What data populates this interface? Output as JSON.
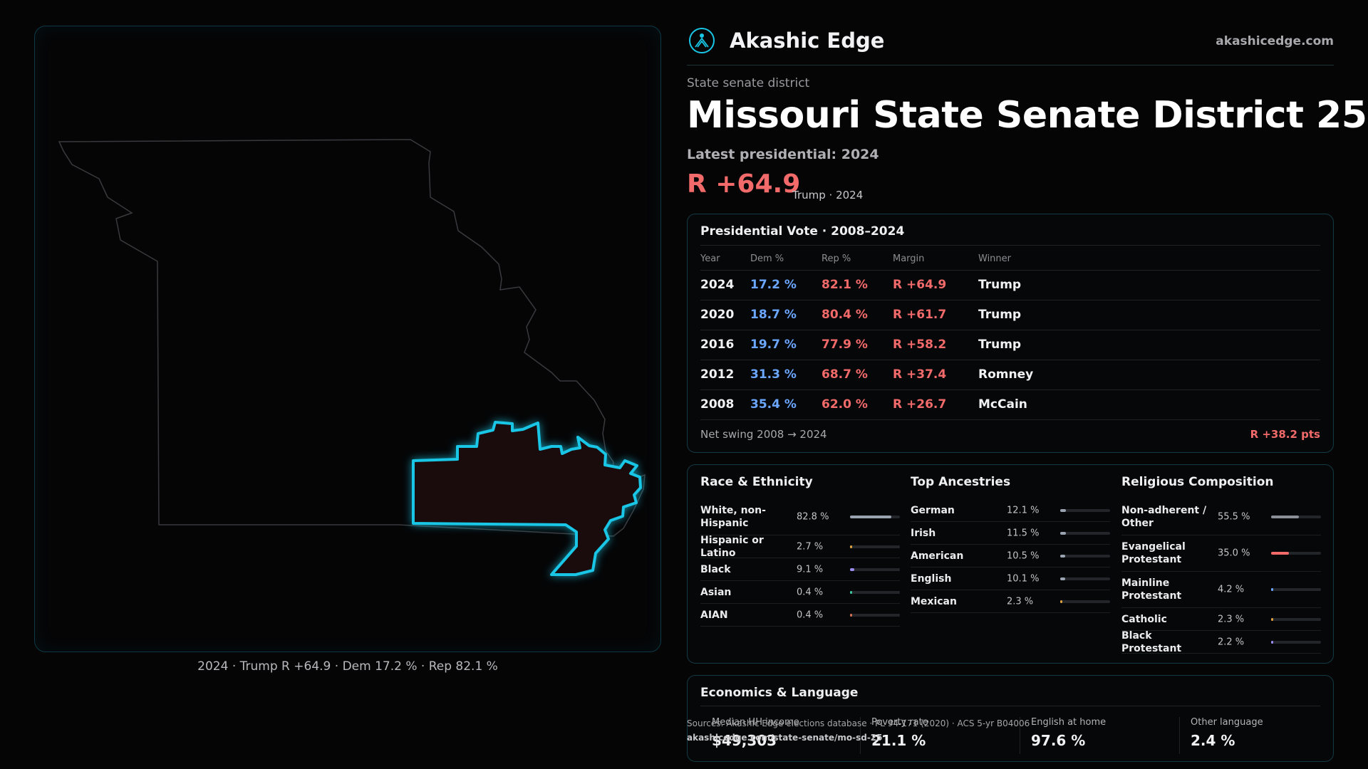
{
  "brand": {
    "name": "Akashic Edge",
    "url": "akashicedge.com"
  },
  "header": {
    "kicker": "State senate district",
    "title": "Missouri State Senate District 25",
    "latest": "Latest presidential: 2024",
    "margin": "R +64.9",
    "margin_sub": "Trump · 2024"
  },
  "map": {
    "caption": "2024 · Trump R +64.9 · Dem 17.2 % · Rep 82.1 %",
    "district_highlight_color": "#19c6e6",
    "district_fill_color": "#1a0c0c",
    "state_outline_color": "#3a3a3e"
  },
  "presidential": {
    "title": "Presidential Vote · 2008–2024",
    "headers": {
      "year": "Year",
      "dem": "Dem %",
      "rep": "Rep %",
      "margin": "Margin",
      "winner": "Winner"
    },
    "rows": [
      {
        "year": "2024",
        "dem": "17.2 %",
        "rep": "82.1 %",
        "margin": "R +64.9",
        "winner": "Trump"
      },
      {
        "year": "2020",
        "dem": "18.7 %",
        "rep": "80.4 %",
        "margin": "R +61.7",
        "winner": "Trump"
      },
      {
        "year": "2016",
        "dem": "19.7 %",
        "rep": "77.9 %",
        "margin": "R +58.2",
        "winner": "Trump"
      },
      {
        "year": "2012",
        "dem": "31.3 %",
        "rep": "68.7 %",
        "margin": "R +37.4",
        "winner": "Romney"
      },
      {
        "year": "2008",
        "dem": "35.4 %",
        "rep": "62.0 %",
        "margin": "R +26.7",
        "winner": "McCain"
      }
    ],
    "swing_label": "Net swing 2008 → 2024",
    "swing_value": "R +38.2 pts"
  },
  "race": {
    "title": "Race & Ethnicity",
    "items": [
      {
        "label": "White, non-Hispanic",
        "value": "82.8 %",
        "fraction": 0.828,
        "color": "#9aa3b0",
        "tall": true
      },
      {
        "label": "Hispanic or Latino",
        "value": "2.7 %",
        "fraction": 0.027,
        "color": "#e0a040",
        "tall": false
      },
      {
        "label": "Black",
        "value": "9.1 %",
        "fraction": 0.091,
        "color": "#9b8cf0",
        "tall": false
      },
      {
        "label": "Asian",
        "value": "0.4 %",
        "fraction": 0.004,
        "color": "#3cc8a0",
        "tall": false
      },
      {
        "label": "AIAN",
        "value": "0.4 %",
        "fraction": 0.004,
        "color": "#d07050",
        "tall": false
      }
    ]
  },
  "ancestry": {
    "title": "Top Ancestries",
    "items": [
      {
        "label": "German",
        "value": "12.1 %",
        "fraction": 0.121,
        "color": "#9aa3b0"
      },
      {
        "label": "Irish",
        "value": "11.5 %",
        "fraction": 0.115,
        "color": "#9aa3b0"
      },
      {
        "label": "American",
        "value": "10.5 %",
        "fraction": 0.105,
        "color": "#9aa3b0"
      },
      {
        "label": "English",
        "value": "10.1 %",
        "fraction": 0.101,
        "color": "#9aa3b0"
      },
      {
        "label": "Mexican",
        "value": "2.3 %",
        "fraction": 0.023,
        "color": "#e0a040"
      }
    ]
  },
  "religion": {
    "title": "Religious Composition",
    "items": [
      {
        "label": "Non-adherent / Other",
        "value": "55.5 %",
        "fraction": 0.555,
        "color": "#8a8f98",
        "tall": true
      },
      {
        "label": "Evangelical Protestant",
        "value": "35.0 %",
        "fraction": 0.35,
        "color": "#f26a6a",
        "tall": true
      },
      {
        "label": "Mainline Protestant",
        "value": "4.2 %",
        "fraction": 0.042,
        "color": "#6ba6ff",
        "tall": true
      },
      {
        "label": "Catholic",
        "value": "2.3 %",
        "fraction": 0.023,
        "color": "#e0a040",
        "tall": false
      },
      {
        "label": "Black Protestant",
        "value": "2.2 %",
        "fraction": 0.022,
        "color": "#9b8cf0",
        "tall": false
      }
    ]
  },
  "economics": {
    "title": "Economics & Language",
    "cells": [
      {
        "label": "Median HH income",
        "value": "$49,303"
      },
      {
        "label": "Poverty rate",
        "value": "21.1 %"
      },
      {
        "label": "English at home",
        "value": "97.6 %"
      },
      {
        "label": "Other language",
        "value": "2.4 %"
      }
    ]
  },
  "source": {
    "line": "Sources: Akashic Edge elections database · PL 94-171 (2020) · ACS 5-yr B04006",
    "url": "akashicedge.com/state-senate/mo-sd-25"
  }
}
